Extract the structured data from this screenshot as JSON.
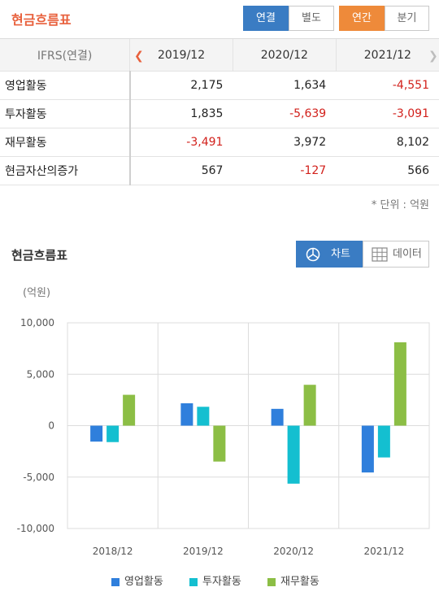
{
  "header": {
    "title": "현금흐름표",
    "btn_consolidated": "연결",
    "btn_separate": "별도",
    "btn_annual": "연간",
    "btn_quarter": "분기"
  },
  "table": {
    "corner_label": "IFRS(연결)",
    "years": [
      "2019/12",
      "2020/12",
      "2021/12"
    ],
    "rows": [
      {
        "label": "영업활동",
        "values": [
          "2,175",
          "1,634",
          "-4,551"
        ]
      },
      {
        "label": "투자활동",
        "values": [
          "1,835",
          "-5,639",
          "-3,091"
        ]
      },
      {
        "label": "재무활동",
        "values": [
          "-3,491",
          "3,972",
          "8,102"
        ]
      },
      {
        "label": "현금자산의증가",
        "values": [
          "567",
          "-127",
          "566"
        ]
      }
    ]
  },
  "unit_note": "* 단위 : 억원",
  "chart_section": {
    "title": "현금흐름표",
    "btn_chart": "차트",
    "btn_data": "데이터",
    "y_unit": "(억원)"
  },
  "chart_data": {
    "type": "bar",
    "categories": [
      "2018/12",
      "2019/12",
      "2020/12",
      "2021/12"
    ],
    "series": [
      {
        "name": "영업활동",
        "color": "#2f7fdc",
        "values": [
          -1550,
          2175,
          1634,
          -4551
        ]
      },
      {
        "name": "투자활동",
        "color": "#14bfd0",
        "values": [
          -1600,
          1835,
          -5639,
          -3091
        ]
      },
      {
        "name": "재무활동",
        "color": "#8cbe45",
        "values": [
          3000,
          -3491,
          3972,
          8102
        ]
      }
    ],
    "ylim": [
      -10000,
      10000
    ],
    "yticks": [
      10000,
      5000,
      0,
      -5000,
      -10000
    ],
    "ytick_labels": [
      "10,000",
      "5,000",
      "0",
      "-5,000",
      "-10,000"
    ],
    "grid": true,
    "legend": "bottom"
  }
}
